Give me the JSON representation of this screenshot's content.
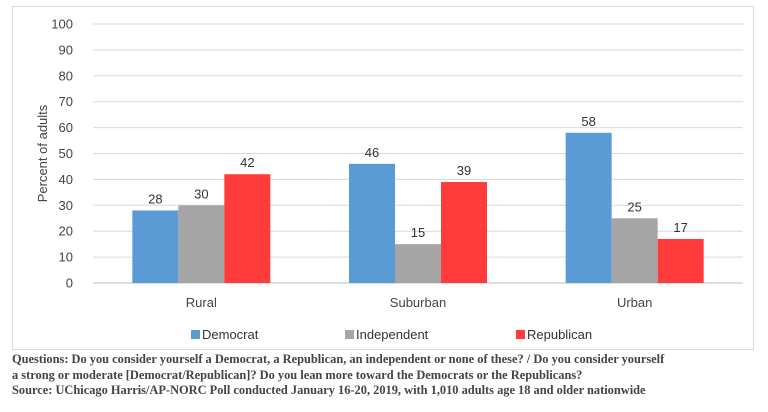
{
  "chart_data": {
    "type": "bar",
    "title": "",
    "xlabel": "",
    "ylabel": "Percent of adults",
    "ylim": [
      0,
      100
    ],
    "yticks": [
      0,
      10,
      20,
      30,
      40,
      50,
      60,
      70,
      80,
      90,
      100
    ],
    "grid": true,
    "legend_position": "bottom",
    "categories": [
      "Rural",
      "Suburban",
      "Urban"
    ],
    "series": [
      {
        "name": "Democrat",
        "color": "#5b9bd5",
        "values": [
          28,
          46,
          58
        ]
      },
      {
        "name": "Independent",
        "color": "#a5a5a5",
        "values": [
          30,
          15,
          25
        ]
      },
      {
        "name": "Republican",
        "color": "#ff3b3b",
        "values": [
          42,
          39,
          17
        ]
      }
    ]
  },
  "footnotes": {
    "questions_line1": "Questions: Do you consider yourself a Democrat, a Republican, an independent or none of these? / Do you consider yourself",
    "questions_line2": "a strong or moderate [Democrat/Republican]? Do you lean more toward the Democrats or the Republicans?",
    "source": "Source: UChicago Harris/AP-NORC Poll conducted January 16-20, 2019, with 1,010 adults age 18 and older nationwide"
  }
}
